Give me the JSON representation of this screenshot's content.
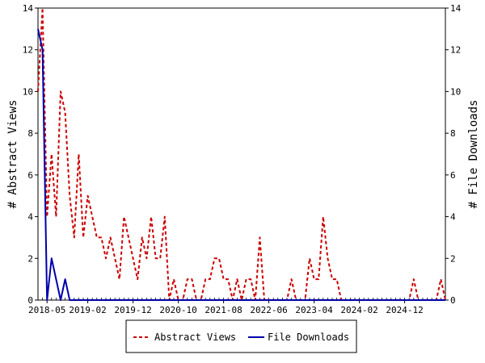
{
  "chart_data": {
    "type": "line",
    "ylabel_left": "# Abstract Views",
    "ylabel_right": "# File Downloads",
    "ylim": [
      0,
      14
    ],
    "yticks": [
      0,
      2,
      4,
      6,
      8,
      10,
      12,
      14
    ],
    "xticks": [
      "2018-05",
      "2019-02",
      "2019-12",
      "2020-10",
      "2021-08",
      "2022-06",
      "2023-04",
      "2024-02",
      "2024-12"
    ],
    "x_start": "2018-03",
    "legend_position": "bottom-center",
    "grid": false,
    "series": [
      {
        "name": "Abstract Views",
        "color": "#cc0000",
        "style": "dashed",
        "values": [
          10,
          14,
          4,
          7,
          4,
          10,
          9,
          5,
          3,
          7,
          3,
          5,
          4,
          3,
          3,
          2,
          3,
          2,
          1,
          4,
          3,
          2,
          1,
          3,
          2,
          4,
          2,
          2,
          4,
          0,
          1,
          0,
          0,
          1,
          1,
          0,
          0,
          1,
          1,
          2,
          2,
          1,
          1,
          0,
          1,
          0,
          1,
          1,
          0,
          3,
          0,
          0,
          0,
          0,
          0,
          0,
          1,
          0,
          0,
          0,
          2,
          1,
          1,
          4,
          2,
          1,
          1,
          0,
          0,
          0,
          0,
          0,
          0,
          0,
          0,
          0,
          0,
          0,
          0,
          0,
          0,
          0,
          0,
          1,
          0,
          0,
          0,
          0,
          0,
          1,
          0
        ]
      },
      {
        "name": "File Downloads",
        "color": "#0000aa",
        "style": "solid",
        "values": [
          13,
          12,
          0,
          2,
          1,
          0,
          1,
          0,
          0,
          0,
          0,
          0,
          0,
          0,
          0,
          0,
          0,
          0,
          0,
          0,
          0,
          0,
          0,
          0,
          0,
          0,
          0,
          0,
          0,
          0,
          0,
          0,
          0,
          0,
          0,
          0,
          0,
          0,
          0,
          0,
          0,
          0,
          0,
          0,
          0,
          0,
          0,
          0,
          0,
          0,
          0,
          0,
          0,
          0,
          0,
          0,
          0,
          0,
          0,
          0,
          0,
          0,
          0,
          0,
          0,
          0,
          0,
          0,
          0,
          0,
          0,
          0,
          0,
          0,
          0,
          0,
          0,
          0,
          0,
          0,
          0,
          0,
          0,
          0,
          0,
          0,
          0,
          0,
          0,
          0,
          0
        ]
      }
    ]
  }
}
